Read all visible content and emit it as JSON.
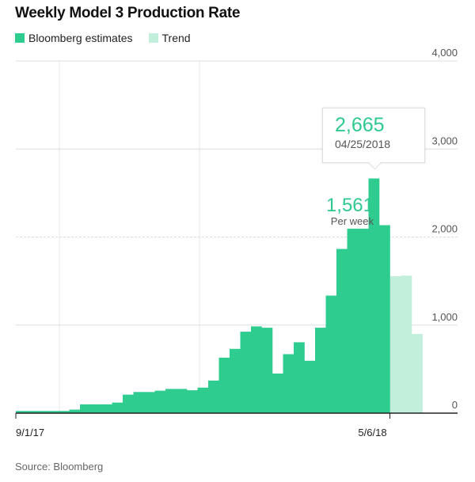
{
  "chart_data": {
    "type": "bar",
    "title": "Weekly Model 3 Production Rate",
    "legend": [
      {
        "name": "Bloomberg estimates",
        "color": "#2ecc8f"
      },
      {
        "name": "Trend",
        "color": "#c2efdb"
      }
    ],
    "legend_placement": "top-left",
    "series": [
      {
        "name": "Bloomberg estimates",
        "values": [
          25,
          25,
          25,
          25,
          25,
          40,
          100,
          100,
          100,
          120,
          210,
          240,
          240,
          255,
          275,
          275,
          260,
          290,
          370,
          630,
          730,
          925,
          985,
          970,
          450,
          670,
          805,
          595,
          970,
          1335,
          1865,
          2095,
          2095,
          2665,
          2135
        ]
      },
      {
        "name": "Trend",
        "values": [
          1555,
          1561,
          900
        ]
      }
    ],
    "x_tick_labels": [
      "9/1/17",
      "5/6/18"
    ],
    "y_ticks": [
      0,
      1000,
      2000,
      3000,
      4000
    ],
    "y_tick_labels": [
      "0",
      "1,000",
      "2,000",
      "3,000",
      "4,000"
    ],
    "ylim": [
      0,
      4000
    ],
    "grid": true,
    "tooltip": {
      "value": "2,665",
      "date": "04/25/2018"
    },
    "annotation": {
      "value": "1,561",
      "unit": "Per week"
    },
    "source": "Source: Bloomberg"
  }
}
